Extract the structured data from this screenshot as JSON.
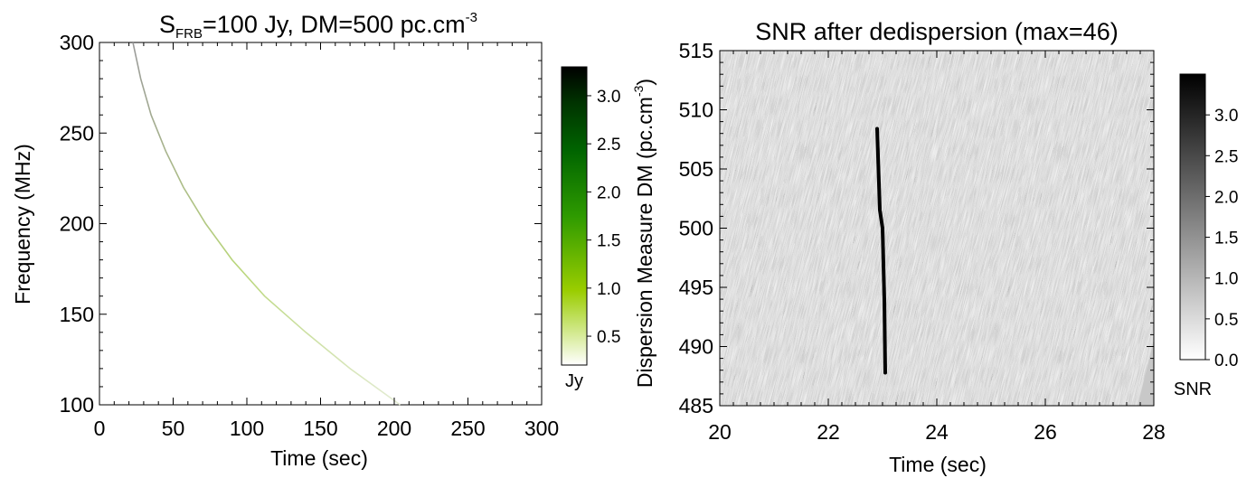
{
  "chart_data": [
    {
      "type": "line",
      "title_main": "S",
      "title_sub": "FRB",
      "title_rest": "=100 Jy, DM=500 pc.cm",
      "title_sup": "-3",
      "xlabel": "Time (sec)",
      "ylabel": "Frequency (MHz)",
      "xlim": [
        0,
        300
      ],
      "ylim": [
        100,
        300
      ],
      "xticks": [
        "0",
        "50",
        "100",
        "150",
        "200",
        "250",
        "300"
      ],
      "yticks": [
        "100",
        "150",
        "200",
        "250",
        "300"
      ],
      "series": [
        {
          "x": [
            22.7,
            28,
            35,
            45,
            57,
            72,
            90,
            112,
            140,
            170,
            204
          ],
          "y": [
            300,
            280,
            260,
            240,
            220,
            200,
            180,
            160,
            140,
            120,
            100
          ],
          "color": [
            "#b9d67a",
            "#dfe8c8"
          ]
        }
      ],
      "colorbar": {
        "label": "Jy",
        "range": [
          0.2,
          3.3
        ],
        "ticks": [
          "0.5",
          "1.0",
          "1.5",
          "2.0",
          "2.5",
          "3.0"
        ],
        "colors": [
          "#ffffff",
          "#9acd00",
          "#2e9a00",
          "#006400",
          "#003300",
          "#000000"
        ]
      }
    },
    {
      "type": "heatmap",
      "title": "SNR after dedispersion (max=46)",
      "xlabel": "Time (sec)",
      "ylabel_main": "Dispersion Measure DM (pc.cm",
      "ylabel_sup": "-3",
      "ylabel_end": ")",
      "xlim": [
        20,
        28
      ],
      "ylim": [
        485,
        515
      ],
      "xticks": [
        "20",
        "22",
        "24",
        "26",
        "28"
      ],
      "yticks": [
        "485",
        "490",
        "495",
        "500",
        "505",
        "510",
        "515"
      ],
      "peak": {
        "x": 23.0,
        "y": 500
      },
      "colorbar": {
        "label": "SNR",
        "range": [
          0,
          3.5
        ],
        "ticks": [
          "0.0",
          "0.5",
          "1.0",
          "1.5",
          "2.0",
          "2.5",
          "3.0"
        ],
        "colors": [
          "#ffffff",
          "#000000"
        ]
      }
    }
  ]
}
